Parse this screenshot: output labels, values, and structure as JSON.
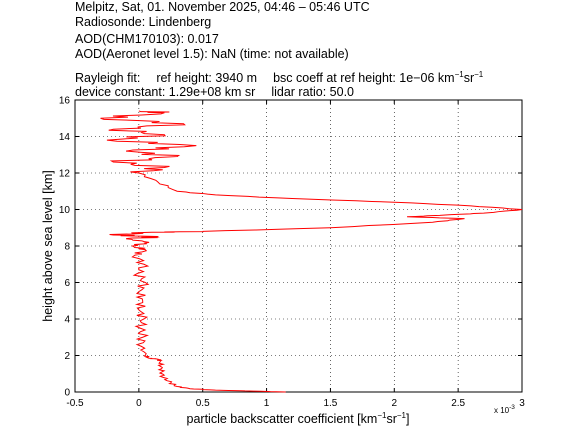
{
  "header": {
    "line1": "Melpitz, Sat, 01. November 2025, 04:46 – 05:46 UTC",
    "line2": "Radiosonde: Lindenberg",
    "line3": "AOD(CHM170103): 0.017",
    "line4": "AOD(Aeronet level 1.5): NaN   (time: not available)",
    "line5_a": "Rayleigh fit:",
    "line5_b": "ref height: 3940 m",
    "line5_c": "bsc coeff at ref height: 1e−06 km",
    "line6_a": "device constant: 1.29e+08 km sr",
    "line6_b": "lidar ratio: 50.0"
  },
  "chart_data": {
    "type": "line",
    "title": "",
    "xlabel": "particle backscatter coefficient [km⁻¹sr⁻¹]",
    "ylabel": "height above sea level [km]",
    "xlim": [
      -0.0005,
      0.003
    ],
    "ylim": [
      0,
      16
    ],
    "x_exponent_label": "x 10",
    "x_exponent_power": "-3",
    "x_ticks": [
      -0.5,
      0,
      0.5,
      1,
      1.5,
      2,
      2.5,
      3
    ],
    "y_ticks": [
      0,
      2,
      4,
      6,
      8,
      10,
      12,
      14,
      16
    ],
    "grid": true,
    "line_color": "#ff0000",
    "series": [
      {
        "points": [
          [
            1.15,
            0.0
          ],
          [
            0.9,
            0.05
          ],
          [
            0.6,
            0.1
          ],
          [
            0.4,
            0.18
          ],
          [
            0.3,
            0.3
          ],
          [
            0.25,
            0.5
          ],
          [
            0.19,
            0.8
          ],
          [
            0.18,
            1.1
          ],
          [
            0.17,
            1.4
          ],
          [
            0.17,
            1.7
          ],
          [
            0.15,
            1.8
          ],
          [
            0.08,
            1.85
          ],
          [
            0.05,
            2.0
          ],
          [
            0.02,
            2.5
          ],
          [
            0.03,
            3.0
          ],
          [
            0.01,
            3.5
          ],
          [
            0.04,
            4.0
          ],
          [
            0.0,
            4.5
          ],
          [
            0.03,
            5.0
          ],
          [
            0.0,
            5.5
          ],
          [
            0.05,
            6.0
          ],
          [
            -0.01,
            6.5
          ],
          [
            0.04,
            7.0
          ],
          [
            -0.03,
            7.5
          ],
          [
            0.05,
            7.8
          ],
          [
            -0.05,
            8.0
          ],
          [
            0.08,
            8.2
          ],
          [
            -0.1,
            8.4
          ],
          [
            0.15,
            8.5
          ],
          [
            -0.2,
            8.6
          ],
          [
            0.1,
            8.75
          ],
          [
            0.5,
            8.8
          ],
          [
            1.5,
            9.0
          ],
          [
            2.3,
            9.3
          ],
          [
            2.55,
            9.5
          ],
          [
            2.1,
            9.6
          ],
          [
            2.4,
            9.7
          ],
          [
            2.7,
            9.8
          ],
          [
            3.0,
            10.0
          ],
          [
            2.6,
            10.2
          ],
          [
            2.0,
            10.4
          ],
          [
            1.2,
            10.6
          ],
          [
            0.6,
            10.8
          ],
          [
            0.3,
            11.0
          ],
          [
            0.15,
            11.5
          ],
          [
            0.0,
            12.0
          ],
          [
            0.2,
            12.3
          ],
          [
            -0.2,
            12.6
          ],
          [
            0.3,
            12.9
          ],
          [
            -0.1,
            13.2
          ],
          [
            0.45,
            13.5
          ],
          [
            -0.25,
            13.8
          ],
          [
            0.2,
            14.1
          ],
          [
            -0.2,
            14.4
          ],
          [
            0.35,
            14.7
          ],
          [
            -0.3,
            15.0
          ],
          [
            0.2,
            15.3
          ],
          [
            0.0,
            15.4
          ]
        ]
      }
    ]
  }
}
